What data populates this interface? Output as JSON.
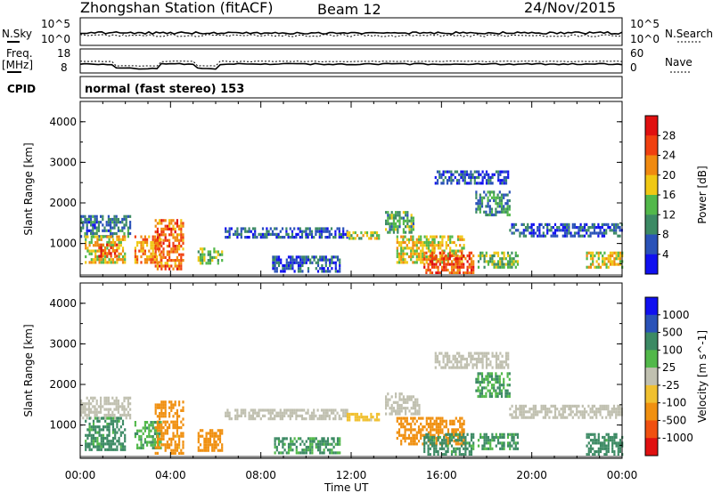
{
  "header": {
    "station": "Zhongshan Station (fitACF)",
    "beam": "Beam 12",
    "date": "24/Nov/2015"
  },
  "top_panels": {
    "nsky_label": "N.Sky",
    "nsearch_label": "N.Search",
    "sky_ticks": [
      "10^5",
      "10^0"
    ],
    "search_ticks": [
      "10^5",
      "10^0"
    ],
    "freq_label_1": "Freq.",
    "freq_label_2": "[MHz]",
    "freq_ticks": [
      "18",
      "8"
    ],
    "nave_label": "Nave",
    "nave_ticks": [
      "60",
      "0"
    ],
    "cpid_label": "CPID",
    "cpid_text": "normal (fast stereo) 153"
  },
  "colors": {
    "power_scale": [
      "#1010f0",
      "#2a52b8",
      "#3c8a64",
      "#52b84a",
      "#f0c814",
      "#f08a10",
      "#f04010",
      "#e01010"
    ],
    "velocity_scale": [
      "#e01010",
      "#f05010",
      "#f09010",
      "#f0c030",
      "#c0c0b0",
      "#52b84a",
      "#3c8a64",
      "#2a52b8",
      "#1010f0"
    ]
  },
  "chart_data": [
    {
      "type": "heatmap",
      "title": "Power",
      "ylabel": "Slant Range [km]",
      "colorbar_label": "Power [dB]",
      "colorbar_ticks": [
        "28",
        "24",
        "20",
        "16",
        "12",
        "8",
        "4"
      ],
      "colorbar_range": [
        0,
        32
      ],
      "y_ticks": [
        "4000",
        "3000",
        "2000",
        "1000"
      ],
      "ylim": [
        180,
        4500
      ],
      "x_ticks": [
        "00:00",
        "04:00",
        "08:00",
        "12:00",
        "16:00",
        "20:00",
        "00:00"
      ],
      "xlim_hours": [
        0,
        24
      ],
      "regions": [
        {
          "t0": 0.0,
          "t1": 2.2,
          "r0": 1200,
          "r1": 1700,
          "level": 8
        },
        {
          "t0": 0.2,
          "t1": 2.0,
          "r0": 500,
          "r1": 1200,
          "level": 18
        },
        {
          "t0": 0.8,
          "t1": 1.6,
          "r0": 700,
          "r1": 1000,
          "level": 26
        },
        {
          "t0": 2.4,
          "t1": 3.6,
          "r0": 500,
          "r1": 1200,
          "level": 22
        },
        {
          "t0": 3.3,
          "t1": 4.6,
          "r0": 400,
          "r1": 1600,
          "level": 24
        },
        {
          "t0": 5.2,
          "t1": 6.3,
          "r0": 500,
          "r1": 900,
          "level": 14
        },
        {
          "t0": 6.4,
          "t1": 11.8,
          "r0": 1150,
          "r1": 1400,
          "level": 6
        },
        {
          "t0": 8.5,
          "t1": 11.5,
          "r0": 300,
          "r1": 700,
          "level": 6
        },
        {
          "t0": 11.8,
          "t1": 13.2,
          "r0": 1100,
          "r1": 1300,
          "level": 16
        },
        {
          "t0": 13.5,
          "t1": 14.8,
          "r0": 1300,
          "r1": 1800,
          "level": 12
        },
        {
          "t0": 14.0,
          "t1": 17.0,
          "r0": 500,
          "r1": 1200,
          "level": 18
        },
        {
          "t0": 15.2,
          "t1": 17.4,
          "r0": 300,
          "r1": 800,
          "level": 26
        },
        {
          "t0": 15.7,
          "t1": 19.0,
          "r0": 2500,
          "r1": 2800,
          "level": 6
        },
        {
          "t0": 17.5,
          "t1": 19.0,
          "r0": 1700,
          "r1": 2300,
          "level": 10
        },
        {
          "t0": 17.6,
          "t1": 19.4,
          "r0": 400,
          "r1": 800,
          "level": 14
        },
        {
          "t0": 19.0,
          "t1": 24.0,
          "r0": 1200,
          "r1": 1500,
          "level": 6
        },
        {
          "t0": 22.4,
          "t1": 24.0,
          "r0": 400,
          "r1": 800,
          "level": 18
        }
      ]
    },
    {
      "type": "heatmap",
      "title": "Velocity",
      "ylabel": "Slant Range [km]",
      "colorbar_label": "Velocity [m s^-1]",
      "colorbar_ticks": [
        "1000",
        "500",
        "100",
        "25",
        "-25",
        "-100",
        "-500",
        "-1000"
      ],
      "colorbar_range": [
        -1000,
        1000
      ],
      "y_ticks": [
        "4000",
        "3000",
        "2000",
        "1000"
      ],
      "ylim": [
        180,
        4500
      ],
      "x_ticks": [
        "00:00",
        "04:00",
        "08:00",
        "12:00",
        "16:00",
        "20:00",
        "00:00"
      ],
      "xlim_hours": [
        0,
        24
      ],
      "x_label": "Time UT",
      "regions": [
        {
          "t0": 0.0,
          "t1": 2.2,
          "r0": 1200,
          "r1": 1700,
          "level": 0
        },
        {
          "t0": 0.2,
          "t1": 2.0,
          "r0": 400,
          "r1": 1200,
          "level": 150
        },
        {
          "t0": 2.4,
          "t1": 3.6,
          "r0": 400,
          "r1": 1100,
          "level": 80
        },
        {
          "t0": 3.3,
          "t1": 4.6,
          "r0": 300,
          "r1": 1600,
          "level": -200
        },
        {
          "t0": 5.2,
          "t1": 6.3,
          "r0": 400,
          "r1": 900,
          "level": -250
        },
        {
          "t0": 6.4,
          "t1": 11.8,
          "r0": 1150,
          "r1": 1400,
          "level": 0
        },
        {
          "t0": 8.5,
          "t1": 11.5,
          "r0": 300,
          "r1": 700,
          "level": 120
        },
        {
          "t0": 11.8,
          "t1": 13.2,
          "r0": 1100,
          "r1": 1300,
          "level": -60
        },
        {
          "t0": 13.5,
          "t1": 15.0,
          "r0": 1300,
          "r1": 1800,
          "level": 0
        },
        {
          "t0": 14.0,
          "t1": 17.0,
          "r0": 500,
          "r1": 1200,
          "level": -200
        },
        {
          "t0": 15.2,
          "t1": 17.4,
          "r0": 300,
          "r1": 800,
          "level": 150
        },
        {
          "t0": 15.7,
          "t1": 19.0,
          "r0": 2400,
          "r1": 2800,
          "level": 0
        },
        {
          "t0": 17.5,
          "t1": 19.0,
          "r0": 1700,
          "r1": 2300,
          "level": 100
        },
        {
          "t0": 17.6,
          "t1": 19.4,
          "r0": 400,
          "r1": 800,
          "level": 120
        },
        {
          "t0": 19.0,
          "t1": 24.0,
          "r0": 1200,
          "r1": 1500,
          "level": 0
        },
        {
          "t0": 22.4,
          "t1": 24.0,
          "r0": 300,
          "r1": 800,
          "level": 200
        }
      ]
    }
  ]
}
